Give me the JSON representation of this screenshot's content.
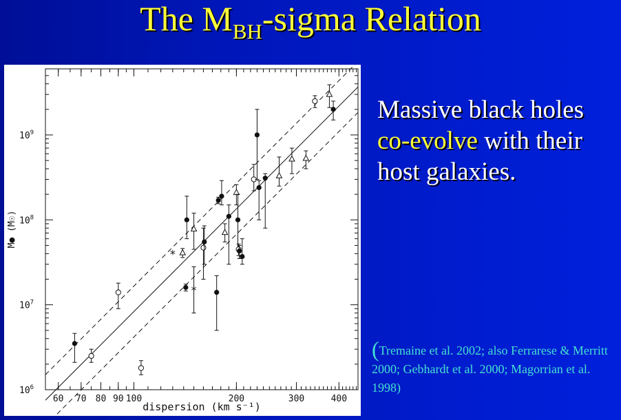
{
  "slide": {
    "title_main": "The M",
    "title_sub": "BH",
    "title_rest": "-sigma Relation",
    "headline_line1": "Massive black holes",
    "headline_accent": "co-evolve",
    "headline_line2_rest": " with their",
    "headline_line3": "host galaxies.",
    "citation_paren": "(",
    "citation_text": "Tremaine et al. 2002; also Ferrarese & Merritt 2000; Gebhardt et al. 2000; Magorrian et al. 1998)"
  },
  "colors": {
    "title": "#ffff38",
    "body_text": "#ffffff",
    "accent": "#ffff38",
    "citation": "#45e0d0",
    "background": "#0016b8"
  },
  "chart_data": {
    "type": "scatter",
    "xlabel": "dispersion (km s⁻¹)",
    "ylabel": "M● (M☉)",
    "x_scale": "log",
    "y_scale": "log",
    "xlim": [
      55,
      455
    ],
    "ylim": [
      1000000,
      6000000000
    ],
    "x_ticks": [
      60,
      70,
      80,
      90,
      100,
      200,
      300,
      400
    ],
    "x_tick_labels": [
      "60",
      "70",
      "80",
      "90",
      "100",
      "200",
      "300",
      "400"
    ],
    "y_ticks": [
      1000000,
      10000000,
      100000000,
      1000000000
    ],
    "y_tick_labels": [
      {
        "base": "10",
        "exp": "6"
      },
      {
        "base": "10",
        "exp": "7"
      },
      {
        "base": "10",
        "exp": "8"
      },
      {
        "base": "10",
        "exp": "9"
      }
    ],
    "fit": {
      "slope": 4.02,
      "intercept": 8.13,
      "sigma0": 200,
      "band_dex": 0.3
    },
    "points": [
      {
        "x": 67,
        "y": 3500000,
        "lo": 2100000,
        "hi": 4600000,
        "m": "filled"
      },
      {
        "x": 75,
        "y": 2500000,
        "lo": 2100000,
        "hi": 3000000,
        "m": "open"
      },
      {
        "x": 90,
        "y": 14000000,
        "lo": 9000000,
        "hi": 18000000,
        "m": "open"
      },
      {
        "x": 105,
        "y": 1800000,
        "lo": 1500000,
        "hi": 2200000,
        "m": "open"
      },
      {
        "x": 130,
        "y": 40000000,
        "lo": 40000000,
        "hi": 40000000,
        "m": "star"
      },
      {
        "x": 139,
        "y": 41000000,
        "lo": 36000000,
        "hi": 46000000,
        "m": "tri"
      },
      {
        "x": 142,
        "y": 16000000,
        "lo": 14500000,
        "hi": 17500000,
        "m": "filled"
      },
      {
        "x": 143,
        "y": 100000000,
        "lo": 60000000,
        "hi": 190000000,
        "m": "filled"
      },
      {
        "x": 150,
        "y": 78000000,
        "lo": 45000000,
        "hi": 120000000,
        "m": "tri"
      },
      {
        "x": 150,
        "y": 15000000,
        "lo": 8000000,
        "hi": 28000000,
        "m": "star"
      },
      {
        "x": 160,
        "y": 47000000,
        "lo": 20000000,
        "hi": 80000000,
        "m": "open"
      },
      {
        "x": 161,
        "y": 55000000,
        "lo": 30000000,
        "hi": 85000000,
        "m": "filled"
      },
      {
        "x": 175,
        "y": 14000000,
        "lo": 5000000,
        "hi": 22000000,
        "m": "filled"
      },
      {
        "x": 177,
        "y": 170000000,
        "lo": 155000000,
        "hi": 185000000,
        "m": "filled"
      },
      {
        "x": 181,
        "y": 190000000,
        "lo": 150000000,
        "hi": 290000000,
        "m": "filled"
      },
      {
        "x": 185,
        "y": 71000000,
        "lo": 55000000,
        "hi": 90000000,
        "m": "tri"
      },
      {
        "x": 190,
        "y": 110000000,
        "lo": 30000000,
        "hi": 150000000,
        "m": "filled"
      },
      {
        "x": 200,
        "y": 210000000,
        "lo": 150000000,
        "hi": 260000000,
        "m": "tri"
      },
      {
        "x": 202,
        "y": 100000000,
        "lo": 45000000,
        "hi": 200000000,
        "m": "filled"
      },
      {
        "x": 203,
        "y": 45000000,
        "lo": 38000000,
        "hi": 52000000,
        "m": "open"
      },
      {
        "x": 204,
        "y": 43000000,
        "lo": 35000000,
        "hi": 50000000,
        "m": "filled"
      },
      {
        "x": 208,
        "y": 37000000,
        "lo": 30000000,
        "hi": 60000000,
        "m": "filled"
      },
      {
        "x": 225,
        "y": 300000000,
        "lo": 220000000,
        "hi": 450000000,
        "m": "open"
      },
      {
        "x": 230,
        "y": 1000000000,
        "lo": 300000000,
        "hi": 2000000000,
        "m": "filled"
      },
      {
        "x": 233,
        "y": 240000000,
        "lo": 100000000,
        "hi": 290000000,
        "m": "filled"
      },
      {
        "x": 243,
        "y": 310000000,
        "lo": 80000000,
        "hi": 350000000,
        "m": "filled"
      },
      {
        "x": 267,
        "y": 330000000,
        "lo": 250000000,
        "hi": 550000000,
        "m": "tri"
      },
      {
        "x": 291,
        "y": 520000000,
        "lo": 350000000,
        "hi": 700000000,
        "m": "tri"
      },
      {
        "x": 320,
        "y": 530000000,
        "lo": 400000000,
        "hi": 650000000,
        "m": "tri"
      },
      {
        "x": 340,
        "y": 2500000000,
        "lo": 2100000000,
        "hi": 2900000000,
        "m": "open"
      },
      {
        "x": 375,
        "y": 3000000000,
        "lo": 2100000000,
        "hi": 3900000000,
        "m": "tri"
      },
      {
        "x": 385,
        "y": 2000000000,
        "lo": 1500000000,
        "hi": 2500000000,
        "m": "filled"
      }
    ]
  }
}
